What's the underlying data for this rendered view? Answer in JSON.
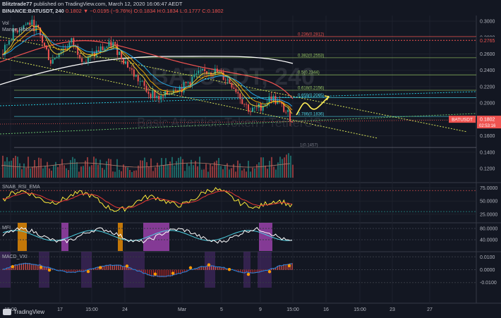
{
  "header": {
    "line1_prefix": "Blitztrade77",
    "line1_suffix": "published on TradingView.com, March 12, 2020 16:06:47 AEDT",
    "line2": "BINANCE:BATUSDT, 240",
    "ohlc": "0.1802 ▼ −0.0195 (−9.76%) O:0.1834 H:0.1834 L:0.1777 C:0.1802"
  },
  "watermark": {
    "symbol": "BATUSDT, 240",
    "name": "Basic Attention Token / TetherUS"
  },
  "indicators": {
    "volume": "Vol",
    "mange": "Mange Ribbon",
    "rsi": "SNAB_RSI_EMA",
    "mfi": "MFI",
    "macd": "MACD_VXI"
  },
  "branding": "TradingView",
  "colors": {
    "background": "#131722",
    "up": "#26a69a",
    "down": "#ef5350",
    "price_label": "#ef5350",
    "fib_red": "#ef5350",
    "fib_green": "#c0ca33",
    "trend_yellow": "#d4e157",
    "dotted_cyan": "#26c6da",
    "rsi_yellow": "#ffeb3b",
    "mfi_cyan": "#4dd0e1",
    "mfi_magenta": "#ab47bc"
  },
  "chart_data": [
    {
      "type": "candlestick",
      "title": "BINANCE:BATUSDT, 240",
      "y_ticks": [
        "0.3000",
        "0.2800",
        "0.2600",
        "0.2400",
        "0.2200",
        "0.2000",
        "0.1800",
        "0.1600",
        "0.1400",
        "0.1200"
      ],
      "ylim": [
        0.11,
        0.305
      ],
      "x_ticks": [
        "15:00",
        "17",
        "15:00",
        "24",
        "Mar",
        "5",
        "9",
        "15:00",
        "16",
        "15:00",
        "23",
        "27"
      ],
      "last_price": "0.1802",
      "countdown": "02:53:16",
      "price_tag": "BATUSDT",
      "top_label": "0.2765",
      "fib_levels": [
        {
          "label": "0.236(0.2812)",
          "value": 0.2812
        },
        {
          "label": "0.382(0.2553)",
          "value": 0.2553
        },
        {
          "label": "0.5(0.2344)",
          "value": 0.2344
        },
        {
          "label": "0.618(0.2156)",
          "value": 0.2156
        },
        {
          "label": "0.659(0.2065)",
          "value": 0.2065
        },
        {
          "label": "0.786(0.1836)",
          "value": 0.1836
        },
        {
          "label": "1(0.1457)",
          "value": 0.1457
        }
      ],
      "price_path": [
        0.26,
        0.28,
        0.29,
        0.295,
        0.298,
        0.29,
        0.27,
        0.25,
        0.262,
        0.268,
        0.275,
        0.262,
        0.25,
        0.258,
        0.265,
        0.268,
        0.272,
        0.26,
        0.248,
        0.235,
        0.225,
        0.214,
        0.21,
        0.205,
        0.212,
        0.22,
        0.218,
        0.226,
        0.234,
        0.236,
        0.24,
        0.238,
        0.232,
        0.226,
        0.215,
        0.2,
        0.19,
        0.193,
        0.2,
        0.207,
        0.2,
        0.19,
        0.1802
      ]
    },
    {
      "type": "line",
      "title": "SNAB_RSI_EMA",
      "y_ticks": [
        "75.0000",
        "50.0000",
        "25.0000"
      ],
      "ylim": [
        10,
        85
      ]
    },
    {
      "type": "line",
      "title": "MFI",
      "y_ticks": [
        "80.0000",
        "40.0000"
      ],
      "ylim": [
        0,
        100
      ]
    },
    {
      "type": "bar",
      "title": "MACD_VXI",
      "y_ticks": [
        "0.0100",
        "0.0000",
        "-0.0100"
      ],
      "ylim": [
        -0.014,
        0.014
      ]
    }
  ]
}
